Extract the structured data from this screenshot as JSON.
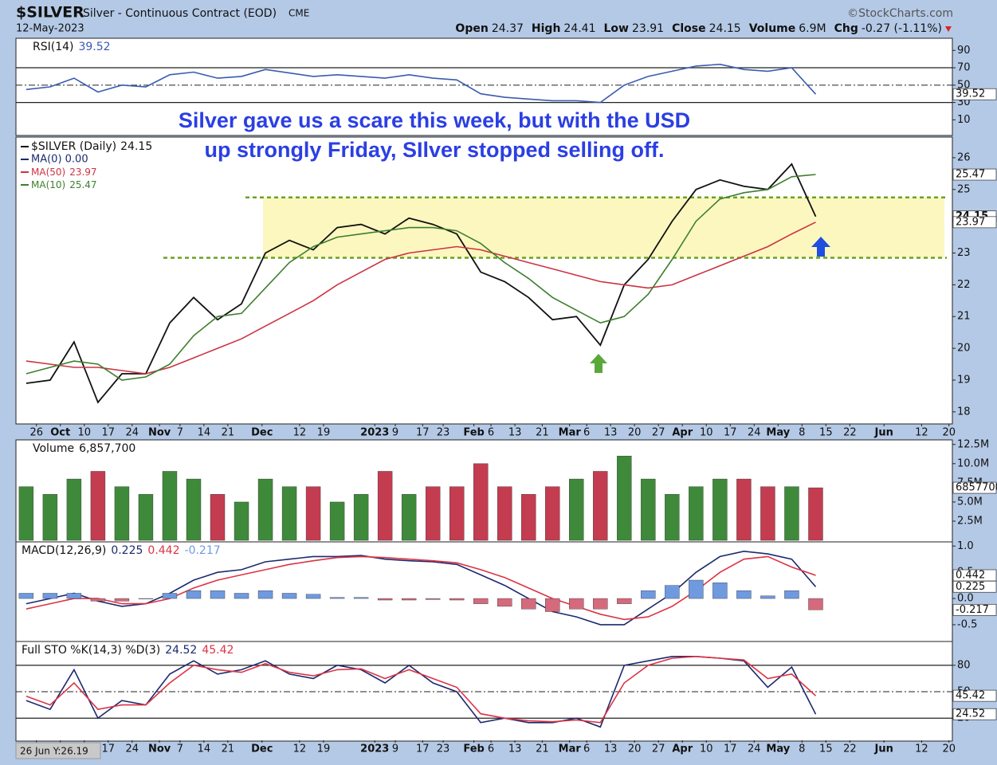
{
  "header": {
    "symbol": "$SILVER",
    "description": "Silver - Continuous Contract (EOD)",
    "exchange": "CME",
    "date": "12-May-2023",
    "source": "©StockCharts.com",
    "quote": [
      [
        "Open",
        "24.37"
      ],
      [
        "High",
        "24.41"
      ],
      [
        "Low",
        "23.91"
      ],
      [
        "Close",
        "24.15"
      ],
      [
        "Volume",
        "6.9M"
      ],
      [
        "Chg",
        "-0.27 (-1.11%)"
      ]
    ]
  },
  "annotation": [
    "Silver gave us a scare this week, but with the USD",
    "up strongly Friday, SIlver stopped selling off."
  ],
  "status": "26 Jun Y:26.19",
  "chart_data": [
    {
      "type": "line",
      "ylim": [
        -8,
        104
      ],
      "yticks": [
        10,
        30,
        50,
        70,
        90
      ],
      "grid": true,
      "grid_skip": [
        10,
        90
      ],
      "grid_dash": [
        50
      ],
      "series": [
        {
          "name": "RSI(14)",
          "color": "#3a5bb0",
          "values": [
            45,
            48,
            58,
            42,
            50,
            48,
            62,
            65,
            58,
            60,
            68,
            64,
            60,
            62,
            60,
            58,
            62,
            58,
            56,
            40,
            36,
            34,
            32,
            32,
            30,
            50,
            60,
            66,
            72,
            74,
            68,
            66,
            70,
            39.52
          ]
        }
      ]
    },
    {
      "type": "line",
      "ylim": [
        17.62,
        26.65
      ],
      "yticks": [
        18,
        19,
        20,
        21,
        22,
        23,
        24,
        25,
        26
      ],
      "grid": false,
      "xlim": [
        "2022-09-20",
        "2023-06-21"
      ],
      "x": [
        "2022-09-23",
        "2022-09-30",
        "2022-10-07",
        "2022-10-14",
        "2022-10-21",
        "2022-10-28",
        "2022-11-04",
        "2022-11-11",
        "2022-11-18",
        "2022-11-25",
        "2022-12-02",
        "2022-12-09",
        "2022-12-16",
        "2022-12-23",
        "2022-12-30",
        "2023-01-06",
        "2023-01-13",
        "2023-01-20",
        "2023-01-27",
        "2023-02-03",
        "2023-02-10",
        "2023-02-17",
        "2023-02-24",
        "2023-03-03",
        "2023-03-10",
        "2023-03-17",
        "2023-03-24",
        "2023-03-31",
        "2023-04-07",
        "2023-04-14",
        "2023-04-21",
        "2023-04-28",
        "2023-05-05",
        "2023-05-12"
      ],
      "xticks": [
        {
          "value": "2022-09-26",
          "label": "26"
        },
        {
          "value": "2022-10-03",
          "label": "Oct"
        },
        {
          "value": "2022-10-10",
          "label": "10"
        },
        {
          "value": "2022-10-17",
          "label": "17"
        },
        {
          "value": "2022-10-24",
          "label": "24"
        },
        {
          "value": "2022-11-01",
          "label": "Nov"
        },
        {
          "value": "2022-11-07",
          "label": "7"
        },
        {
          "value": "2022-11-14",
          "label": "14"
        },
        {
          "value": "2022-11-21",
          "label": "21"
        },
        {
          "value": "2022-12-01",
          "label": "Dec"
        },
        {
          "value": "2022-12-12",
          "label": "12"
        },
        {
          "value": "2022-12-19",
          "label": "19"
        },
        {
          "value": "2023-01-03",
          "label": "2023"
        },
        {
          "value": "2023-01-09",
          "label": "9"
        },
        {
          "value": "2023-01-17",
          "label": "17"
        },
        {
          "value": "2023-01-23",
          "label": "23"
        },
        {
          "value": "2023-02-01",
          "label": "Feb"
        },
        {
          "value": "2023-02-06",
          "label": "6"
        },
        {
          "value": "2023-02-13",
          "label": "13"
        },
        {
          "value": "2023-02-21",
          "label": "21"
        },
        {
          "value": "2023-03-01",
          "label": "Mar"
        },
        {
          "value": "2023-03-06",
          "label": "6"
        },
        {
          "value": "2023-03-13",
          "label": "13"
        },
        {
          "value": "2023-03-20",
          "label": "20"
        },
        {
          "value": "2023-03-27",
          "label": "27"
        },
        {
          "value": "2023-04-03",
          "label": "Apr"
        },
        {
          "value": "2023-04-10",
          "label": "10"
        },
        {
          "value": "2023-04-17",
          "label": "17"
        },
        {
          "value": "2023-04-24",
          "label": "24"
        },
        {
          "value": "2023-05-01",
          "label": "May"
        },
        {
          "value": "2023-05-08",
          "label": "8"
        },
        {
          "value": "2023-05-15",
          "label": "15"
        },
        {
          "value": "2023-05-22",
          "label": "22"
        },
        {
          "value": "2023-06-01",
          "label": "Jun"
        },
        {
          "value": "2023-06-12",
          "label": "12"
        },
        {
          "value": "2023-06-20",
          "label": "20"
        }
      ],
      "hlines": [
        24.75,
        22.85
      ],
      "band_color": "#fbf6b4",
      "hline_color": "#6aa121",
      "legend_extra": "MA(0) 0.00",
      "series": [
        {
          "name": "$SILVER (Daily)",
          "color": "#111111",
          "values": [
            18.9,
            19.0,
            20.2,
            18.3,
            19.2,
            19.2,
            20.8,
            21.6,
            20.9,
            21.4,
            23.0,
            23.4,
            23.1,
            23.8,
            23.9,
            23.6,
            24.1,
            23.9,
            23.6,
            22.4,
            22.1,
            21.6,
            20.9,
            21.0,
            20.1,
            22.0,
            22.8,
            24.0,
            25.0,
            25.3,
            25.1,
            25.0,
            25.8,
            24.15
          ]
        },
        {
          "name": "MA(50)",
          "color": "#cc3344",
          "values": [
            19.6,
            19.5,
            19.4,
            19.4,
            19.3,
            19.2,
            19.4,
            19.7,
            20.0,
            20.3,
            20.7,
            21.1,
            21.5,
            22.0,
            22.4,
            22.8,
            23.0,
            23.1,
            23.2,
            23.1,
            22.9,
            22.7,
            22.5,
            22.3,
            22.1,
            22.0,
            21.9,
            22.0,
            22.3,
            22.6,
            22.9,
            23.2,
            23.6,
            23.97
          ]
        },
        {
          "name": "MA(10)",
          "color": "#3d7f2e",
          "values": [
            19.2,
            19.4,
            19.6,
            19.5,
            19.0,
            19.1,
            19.5,
            20.4,
            21.0,
            21.1,
            21.9,
            22.7,
            23.2,
            23.5,
            23.6,
            23.7,
            23.8,
            23.8,
            23.7,
            23.3,
            22.7,
            22.2,
            21.6,
            21.2,
            20.8,
            21.0,
            21.7,
            22.8,
            24.0,
            24.7,
            24.9,
            25.0,
            25.4,
            25.47
          ]
        }
      ]
    },
    {
      "type": "bar",
      "ylim": [
        -200000,
        13100000
      ],
      "yticks": [
        {
          "value": 2500000,
          "label": "2.5M"
        },
        {
          "value": 5000000,
          "label": "5.0M"
        },
        {
          "value": 7500000,
          "label": "7.5M"
        },
        {
          "value": 10000000,
          "label": "10.0M"
        },
        {
          "value": 12500000,
          "label": "12.5M"
        }
      ],
      "grid": false,
      "up_color": "#3e8a3a",
      "down_color": "#c43c50",
      "last_label": "6,857,700",
      "series": [
        {
          "name": "Volume",
          "color": "#3e8a3a",
          "values": [
            7000000,
            6000000,
            8000000,
            9000000,
            7000000,
            6000000,
            9000000,
            8000000,
            6000000,
            5000000,
            8000000,
            7000000,
            7000000,
            5000000,
            6000000,
            9000000,
            6000000,
            7000000,
            7000000,
            10000000,
            7000000,
            6000000,
            7000000,
            8000000,
            9000000,
            11000000,
            8000000,
            6000000,
            7000000,
            8000000,
            8000000,
            7000000,
            7000000,
            6857700
          ]
        }
      ]
    },
    {
      "type": "line",
      "label": "MACD(12,26,9)",
      "ylim": [
        -0.82,
        1.08
      ],
      "yticks": [
        -0.5,
        {
          "value": 0,
          "label": "0.0"
        },
        {
          "value": 0.5,
          "label": "0.5"
        },
        {
          "value": 1,
          "label": "1.0"
        }
      ],
      "grid": false,
      "series": [
        {
          "color": "#1c2a6e",
          "values": [
            -0.1,
            0.0,
            0.1,
            -0.05,
            -0.15,
            -0.1,
            0.1,
            0.35,
            0.5,
            0.55,
            0.7,
            0.75,
            0.8,
            0.8,
            0.82,
            0.75,
            0.72,
            0.7,
            0.65,
            0.45,
            0.25,
            0.0,
            -0.25,
            -0.35,
            -0.5,
            -0.5,
            -0.2,
            0.1,
            0.5,
            0.8,
            0.9,
            0.85,
            0.75,
            0.225
          ]
        },
        {
          "color": "#dd3344",
          "values": [
            -0.2,
            -0.1,
            0.0,
            0.0,
            -0.1,
            -0.1,
            0.0,
            0.2,
            0.35,
            0.45,
            0.55,
            0.65,
            0.72,
            0.78,
            0.8,
            0.78,
            0.75,
            0.72,
            0.68,
            0.55,
            0.4,
            0.2,
            0.0,
            -0.15,
            -0.3,
            -0.4,
            -0.35,
            -0.15,
            0.15,
            0.5,
            0.75,
            0.8,
            0.6,
            0.442
          ]
        },
        {
          "type": "bar",
          "color": "#6f9ae0",
          "neg_color": "#d56a7c",
          "values": [
            0.1,
            0.1,
            0.1,
            -0.05,
            -0.05,
            0,
            0.1,
            0.15,
            0.15,
            0.1,
            0.15,
            0.1,
            0.08,
            0.02,
            0.02,
            -0.03,
            -0.03,
            -0.02,
            -0.03,
            -0.1,
            -0.15,
            -0.2,
            -0.25,
            -0.2,
            -0.2,
            -0.1,
            0.15,
            0.25,
            0.35,
            0.3,
            0.15,
            0.05,
            0.15,
            -0.217
          ]
        }
      ]
    },
    {
      "type": "line",
      "label": "Full STO %K(14,3) %D(3)",
      "ylim": [
        -6,
        107
      ],
      "yticks": [
        20,
        50,
        80
      ],
      "grid": true,
      "grid_skip": [],
      "grid_dash": [
        50
      ],
      "series": [
        {
          "color": "#1c2a6e",
          "values": [
            40,
            30,
            75,
            20,
            40,
            35,
            70,
            85,
            70,
            75,
            85,
            70,
            65,
            80,
            75,
            60,
            80,
            60,
            50,
            15,
            20,
            15,
            15,
            20,
            10,
            80,
            85,
            90,
            90,
            88,
            85,
            55,
            78,
            24.52
          ]
        },
        {
          "color": "#dd3344",
          "values": [
            45,
            35,
            60,
            30,
            35,
            35,
            60,
            80,
            75,
            72,
            82,
            72,
            68,
            75,
            76,
            65,
            75,
            65,
            55,
            25,
            20,
            17,
            16,
            18,
            15,
            60,
            80,
            88,
            90,
            88,
            86,
            65,
            70,
            45.42
          ]
        }
      ]
    }
  ]
}
